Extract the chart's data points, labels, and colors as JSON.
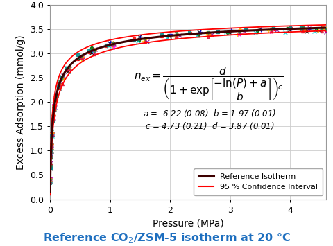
{
  "title": "Reference CO₂/ZSM-5 isotherm at 20 °C",
  "title_color": "#1E6FBF",
  "xlabel": "Pressure (MPa)",
  "ylabel": "Excess Adsorption (mmol/g)",
  "xlim": [
    0,
    4.6
  ],
  "ylim": [
    0.0,
    4.0
  ],
  "xticks": [
    0,
    1,
    2,
    3,
    4
  ],
  "yticks": [
    0.0,
    0.5,
    1.0,
    1.5,
    2.0,
    2.5,
    3.0,
    3.5,
    4.0
  ],
  "params": {
    "a": -6.22,
    "b": 1.97,
    "c": 4.73,
    "d": 3.87
  },
  "param_text_line1": "a = -6.22 (0.08)  b = 1.97 (0.01)",
  "param_text_line2": "c = 4.73 (0.21)  d = 3.87 (0.01)",
  "ref_isotherm_color": "#3D0000",
  "ci_color": "#FF0000",
  "scatter_colors": [
    "#FF0000",
    "#000000",
    "#006400",
    "#0000CD",
    "#FF00FF",
    "#00CED1",
    "#FFD700",
    "#8B008B",
    "#FF8C00",
    "#008B8B",
    "#DC143C",
    "#2E8B57"
  ],
  "scatter_markers": [
    "s",
    "x",
    "o",
    "+",
    "*",
    "x",
    "+",
    "x",
    "D",
    "s",
    "^",
    "v"
  ],
  "background": "#FFFFFF",
  "grid_color": "#CCCCCC",
  "equation_fontsize": 11,
  "param_fontsize": 8.5
}
